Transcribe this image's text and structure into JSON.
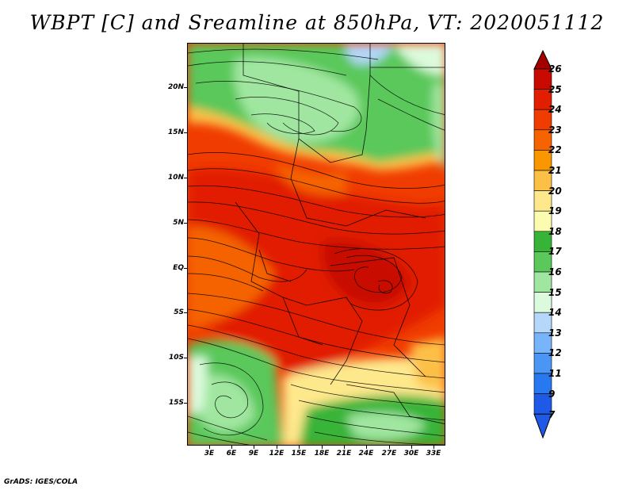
{
  "title": "WBPT [C] and Sreamline at 850hPa, VT: 2020051112",
  "credit": "GrADS: IGES/COLA",
  "map": {
    "lat_labels": [
      "20N",
      "15N",
      "10N",
      "5N",
      "EQ",
      "5S",
      "10S",
      "15S"
    ],
    "lon_labels": [
      "3E",
      "6E",
      "9E",
      "12E",
      "15E",
      "18E",
      "21E",
      "24E",
      "27E",
      "30E",
      "33E"
    ]
  },
  "colorbar": {
    "labels": [
      "26",
      "25",
      "24",
      "23",
      "22",
      "21",
      "20",
      "19",
      "18",
      "17",
      "16",
      "15",
      "14",
      "13",
      "12",
      "11",
      "9",
      "7"
    ],
    "colors": [
      "#a50000",
      "#c80a00",
      "#e11e00",
      "#f03c00",
      "#f56400",
      "#fa9600",
      "#fdc046",
      "#fee88c",
      "#fcfcb0",
      "#37b437",
      "#5ac85a",
      "#a0e6a0",
      "#dcfadc",
      "#b4d7fa",
      "#78b4fa",
      "#4b96f5",
      "#2878f0",
      "#1e5ae6"
    ]
  }
}
